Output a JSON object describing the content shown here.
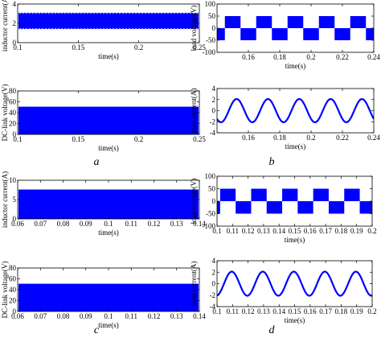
{
  "figure": {
    "panel_labels": [
      "a",
      "b",
      "c",
      "d"
    ]
  },
  "colors": {
    "trace": "#0000ff",
    "axis": "#000000"
  },
  "chart_data": [
    {
      "id": "a_top",
      "type": "line",
      "xlabel": "time(s)",
      "ylabel": "inductor current(A)",
      "xlim": [
        0.1,
        0.25
      ],
      "ylim": [
        0,
        4
      ],
      "xticks": [
        0.1,
        0.15,
        0.2,
        0.25
      ],
      "yticks": [
        0,
        2,
        4
      ],
      "series": [
        {
          "band_min": 1.4,
          "band_max": 3.1,
          "mean": 2.3
        }
      ]
    },
    {
      "id": "a_bottom",
      "type": "line",
      "xlabel": "time(s)",
      "ylabel": "DC-link voltage(V)",
      "xlim": [
        0.1,
        0.25
      ],
      "ylim": [
        0,
        80
      ],
      "xticks": [
        0.1,
        0.15,
        0.2,
        0.25
      ],
      "yticks": [
        0,
        20,
        40,
        60,
        80
      ],
      "series": [
        {
          "band_min": 0,
          "band_max": 51
        }
      ]
    },
    {
      "id": "b_top",
      "type": "line",
      "xlabel": "time(s)",
      "ylabel": "load voltage(V)",
      "xlim": [
        0.14,
        0.24
      ],
      "ylim": [
        -100,
        100
      ],
      "xticks": [
        0.16,
        0.18,
        0.2,
        0.22,
        0.24
      ],
      "xtick_labels": [
        "0.16",
        "0.18",
        "0.2",
        "0.22",
        "0.24"
      ],
      "yticks": [
        -100,
        -50,
        0,
        50,
        100
      ],
      "series": [
        {
          "kind": "unipolar_pwm",
          "amplitude": 50,
          "period": 0.02,
          "phase": 0.145
        }
      ]
    },
    {
      "id": "b_bottom",
      "type": "line",
      "xlabel": "time(s)",
      "ylabel": "load current(A)",
      "xlim": [
        0.14,
        0.24
      ],
      "ylim": [
        -4,
        4
      ],
      "xticks": [
        0.16,
        0.18,
        0.2,
        0.22,
        0.24
      ],
      "xtick_labels": [
        "0.16",
        "0.18",
        "0.2",
        "0.22",
        "0.24"
      ],
      "yticks": [
        -4,
        -2,
        0,
        2,
        4
      ],
      "series": [
        {
          "kind": "sine",
          "amplitude": 2.1,
          "period": 0.02,
          "phase": 0.1475
        }
      ]
    },
    {
      "id": "c_top",
      "type": "line",
      "xlabel": "time(s)",
      "ylabel": "inductor current(A)",
      "xlim": [
        0.06,
        0.14
      ],
      "ylim": [
        0,
        10
      ],
      "xticks": [
        0.06,
        0.07,
        0.08,
        0.09,
        0.1,
        0.11,
        0.12,
        0.13,
        0.14
      ],
      "yticks": [
        0,
        5,
        10
      ],
      "series": [
        {
          "band_min": 0,
          "band_max": 7.6
        }
      ]
    },
    {
      "id": "c_bottom",
      "type": "line",
      "xlabel": "time(s)",
      "ylabel": "DC-link voltage(V)",
      "xlim": [
        0.06,
        0.14
      ],
      "ylim": [
        0,
        80
      ],
      "xticks": [
        0.06,
        0.07,
        0.08,
        0.09,
        0.1,
        0.11,
        0.12,
        0.13,
        0.14
      ],
      "yticks": [
        0,
        20,
        40,
        60,
        80
      ],
      "series": [
        {
          "band_min": 0,
          "band_max": 51
        }
      ]
    },
    {
      "id": "d_top",
      "type": "line",
      "xlabel": "time(s)",
      "ylabel": "load voltage(V)",
      "xlim": [
        0.1,
        0.2
      ],
      "ylim": [
        -100,
        100
      ],
      "xticks": [
        0.1,
        0.11,
        0.12,
        0.13,
        0.14,
        0.15,
        0.16,
        0.17,
        0.18,
        0.19,
        0.2
      ],
      "yticks": [
        -100,
        -50,
        0,
        50,
        100
      ],
      "series": [
        {
          "kind": "unipolar_pwm",
          "amplitude": 50,
          "period": 0.02,
          "phase": 0.102
        }
      ]
    },
    {
      "id": "d_bottom",
      "type": "line",
      "xlabel": "time(s)",
      "ylabel": "load current(A)",
      "xlim": [
        0.1,
        0.2
      ],
      "ylim": [
        -4,
        4
      ],
      "xticks": [
        0.1,
        0.11,
        0.12,
        0.13,
        0.14,
        0.15,
        0.16,
        0.17,
        0.18,
        0.19,
        0.2
      ],
      "yticks": [
        -4,
        -2,
        0,
        2,
        4
      ],
      "series": [
        {
          "kind": "sine",
          "amplitude": 2.1,
          "period": 0.02,
          "phase": 0.1045
        }
      ]
    }
  ]
}
